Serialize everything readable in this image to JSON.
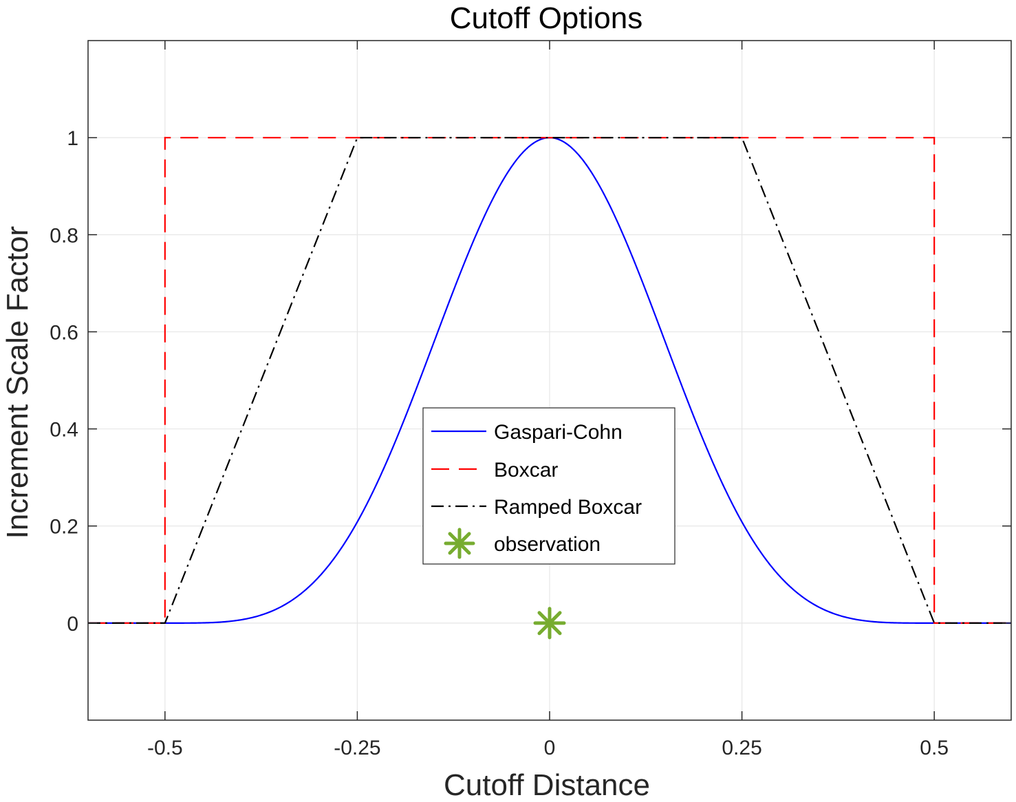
{
  "chart_data": {
    "type": "line",
    "title": "Cutoff Options",
    "xlabel": "Cutoff Distance",
    "ylabel": "Increment Scale Factor",
    "xlim": [
      -0.6,
      0.6
    ],
    "ylim": [
      -0.2,
      1.2
    ],
    "xticks": [
      -0.5,
      -0.25,
      0,
      0.25,
      0.5
    ],
    "xtick_labels": [
      "-0.5",
      "-0.25",
      "0",
      "0.25",
      "0.5"
    ],
    "yticks": [
      0,
      0.2,
      0.4,
      0.6,
      0.8,
      1
    ],
    "ytick_labels": [
      "0",
      "0.2",
      "0.4",
      "0.6",
      "0.8",
      "1"
    ],
    "grid": true,
    "legend_position": "center",
    "series": [
      {
        "name": "Gaspari-Cohn",
        "style": "solid",
        "color": "#0000ff",
        "function": "gaspari-cohn",
        "cutoff": 0.5,
        "x": [
          -0.6,
          -0.5,
          -0.45,
          -0.4,
          -0.35,
          -0.3,
          -0.25,
          -0.2,
          -0.15,
          -0.1,
          -0.05,
          0,
          0.05,
          0.1,
          0.15,
          0.2,
          0.25,
          0.3,
          0.35,
          0.4,
          0.45,
          0.5,
          0.6
        ],
        "values": [
          0,
          0,
          0.0006,
          0.0107,
          0.0518,
          0.1425,
          0.2083,
          0.4003,
          0.6166,
          0.8084,
          0.9497,
          1,
          0.9497,
          0.8084,
          0.6166,
          0.4003,
          0.2083,
          0.1425,
          0.0518,
          0.0107,
          0.0006,
          0,
          0
        ]
      },
      {
        "name": "Boxcar",
        "style": "dashed",
        "color": "#ff0000",
        "x": [
          -0.6,
          -0.5,
          -0.5,
          0.5,
          0.5,
          0.6
        ],
        "values": [
          0,
          0,
          1,
          1,
          0,
          0
        ]
      },
      {
        "name": "Ramped Boxcar",
        "style": "dash-dot",
        "color": "#000000",
        "x": [
          -0.6,
          -0.5,
          -0.25,
          0.25,
          0.5,
          0.6
        ],
        "values": [
          0,
          0,
          1,
          1,
          0,
          0
        ]
      },
      {
        "name": "observation",
        "style": "marker-asterisk",
        "color": "#77ac30",
        "x": [
          0
        ],
        "values": [
          0
        ]
      }
    ]
  }
}
